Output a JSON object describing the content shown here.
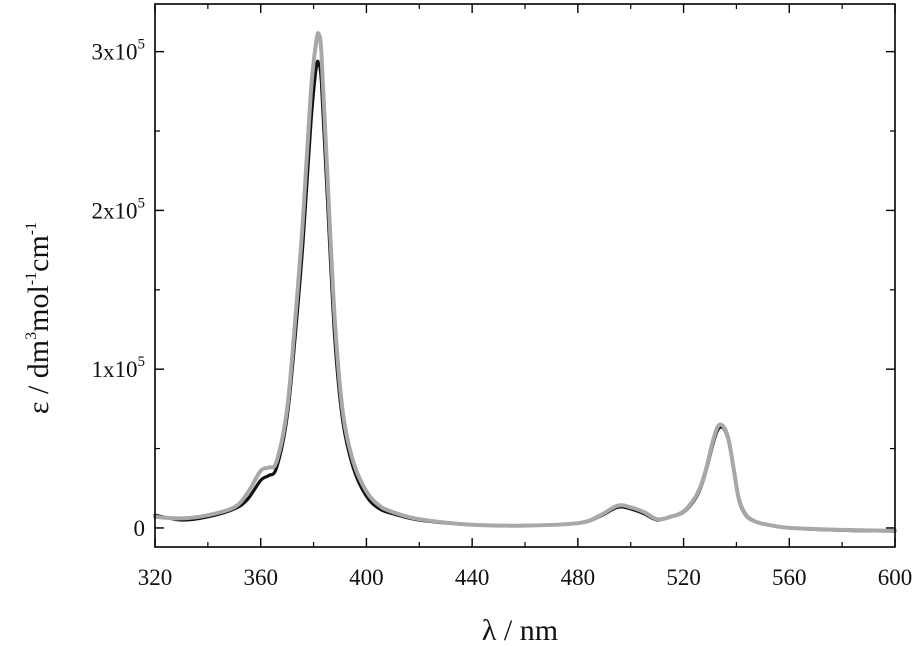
{
  "chart_data": {
    "type": "line",
    "xlabel": "λ / nm",
    "ylabel": {
      "parts": [
        "ε / dm",
        "3",
        "mol",
        "-1",
        "cm",
        "-1"
      ]
    },
    "xlim": [
      320,
      600
    ],
    "ylim": [
      -12000,
      330000
    ],
    "x_ticks": [
      320,
      360,
      400,
      440,
      480,
      520,
      560,
      600
    ],
    "x_tick_labels": [
      "320",
      "360",
      "400",
      "440",
      "480",
      "520",
      "560",
      "600"
    ],
    "y_ticks": [
      {
        "value": 0,
        "mantissa": "0",
        "exp": ""
      },
      {
        "value": 100000,
        "mantissa": "1x10",
        "exp": "5"
      },
      {
        "value": 200000,
        "mantissa": "2x10",
        "exp": "5"
      },
      {
        "value": 300000,
        "mantissa": "3x10",
        "exp": "5"
      }
    ],
    "grid": false,
    "series": [
      {
        "color": "#111111",
        "x": [
          320,
          330,
          340,
          350,
          355,
          360,
          363,
          366,
          370,
          373,
          376,
          379,
          381,
          382,
          383,
          385,
          388,
          391,
          395,
          400,
          405,
          410,
          420,
          440,
          460,
          480,
          488,
          495,
          500,
          505,
          510,
          515,
          520,
          525,
          528,
          531,
          533,
          535,
          537,
          539,
          541,
          544,
          548,
          552,
          560,
          580,
          600
        ],
        "y": [
          8000,
          5000,
          7000,
          12000,
          18000,
          30000,
          33000,
          38000,
          70000,
          120000,
          180000,
          255000,
          290000,
          292000,
          280000,
          215000,
          120000,
          68000,
          38000,
          20000,
          12000,
          9000,
          5000,
          2000,
          1500,
          3000,
          7000,
          13000,
          12000,
          9000,
          5000,
          7000,
          10000,
          20000,
          33000,
          52000,
          62000,
          63000,
          55000,
          36000,
          17000,
          7000,
          3500,
          2000,
          0,
          -1500,
          -2000
        ]
      },
      {
        "color": "#a8a8a8",
        "x": [
          320,
          330,
          340,
          350,
          355,
          360,
          363,
          366,
          370,
          373,
          376,
          379,
          381,
          382,
          383,
          385,
          388,
          391,
          395,
          400,
          405,
          410,
          420,
          440,
          460,
          480,
          488,
          495,
          500,
          505,
          510,
          515,
          520,
          525,
          528,
          531,
          533,
          535,
          537,
          539,
          541,
          544,
          548,
          552,
          560,
          580,
          600
        ],
        "y": [
          7000,
          6000,
          8000,
          13000,
          22000,
          36000,
          38000,
          42000,
          75000,
          130000,
          195000,
          275000,
          306000,
          311000,
          298000,
          230000,
          132000,
          74000,
          42000,
          23000,
          14000,
          10000,
          5500,
          2000,
          1500,
          3000,
          7500,
          14000,
          13000,
          10000,
          5500,
          7000,
          10500,
          21000,
          34000,
          54000,
          64000,
          64000,
          56000,
          37000,
          18000,
          7500,
          3500,
          2000,
          0,
          -1200,
          -1800
        ]
      }
    ]
  }
}
